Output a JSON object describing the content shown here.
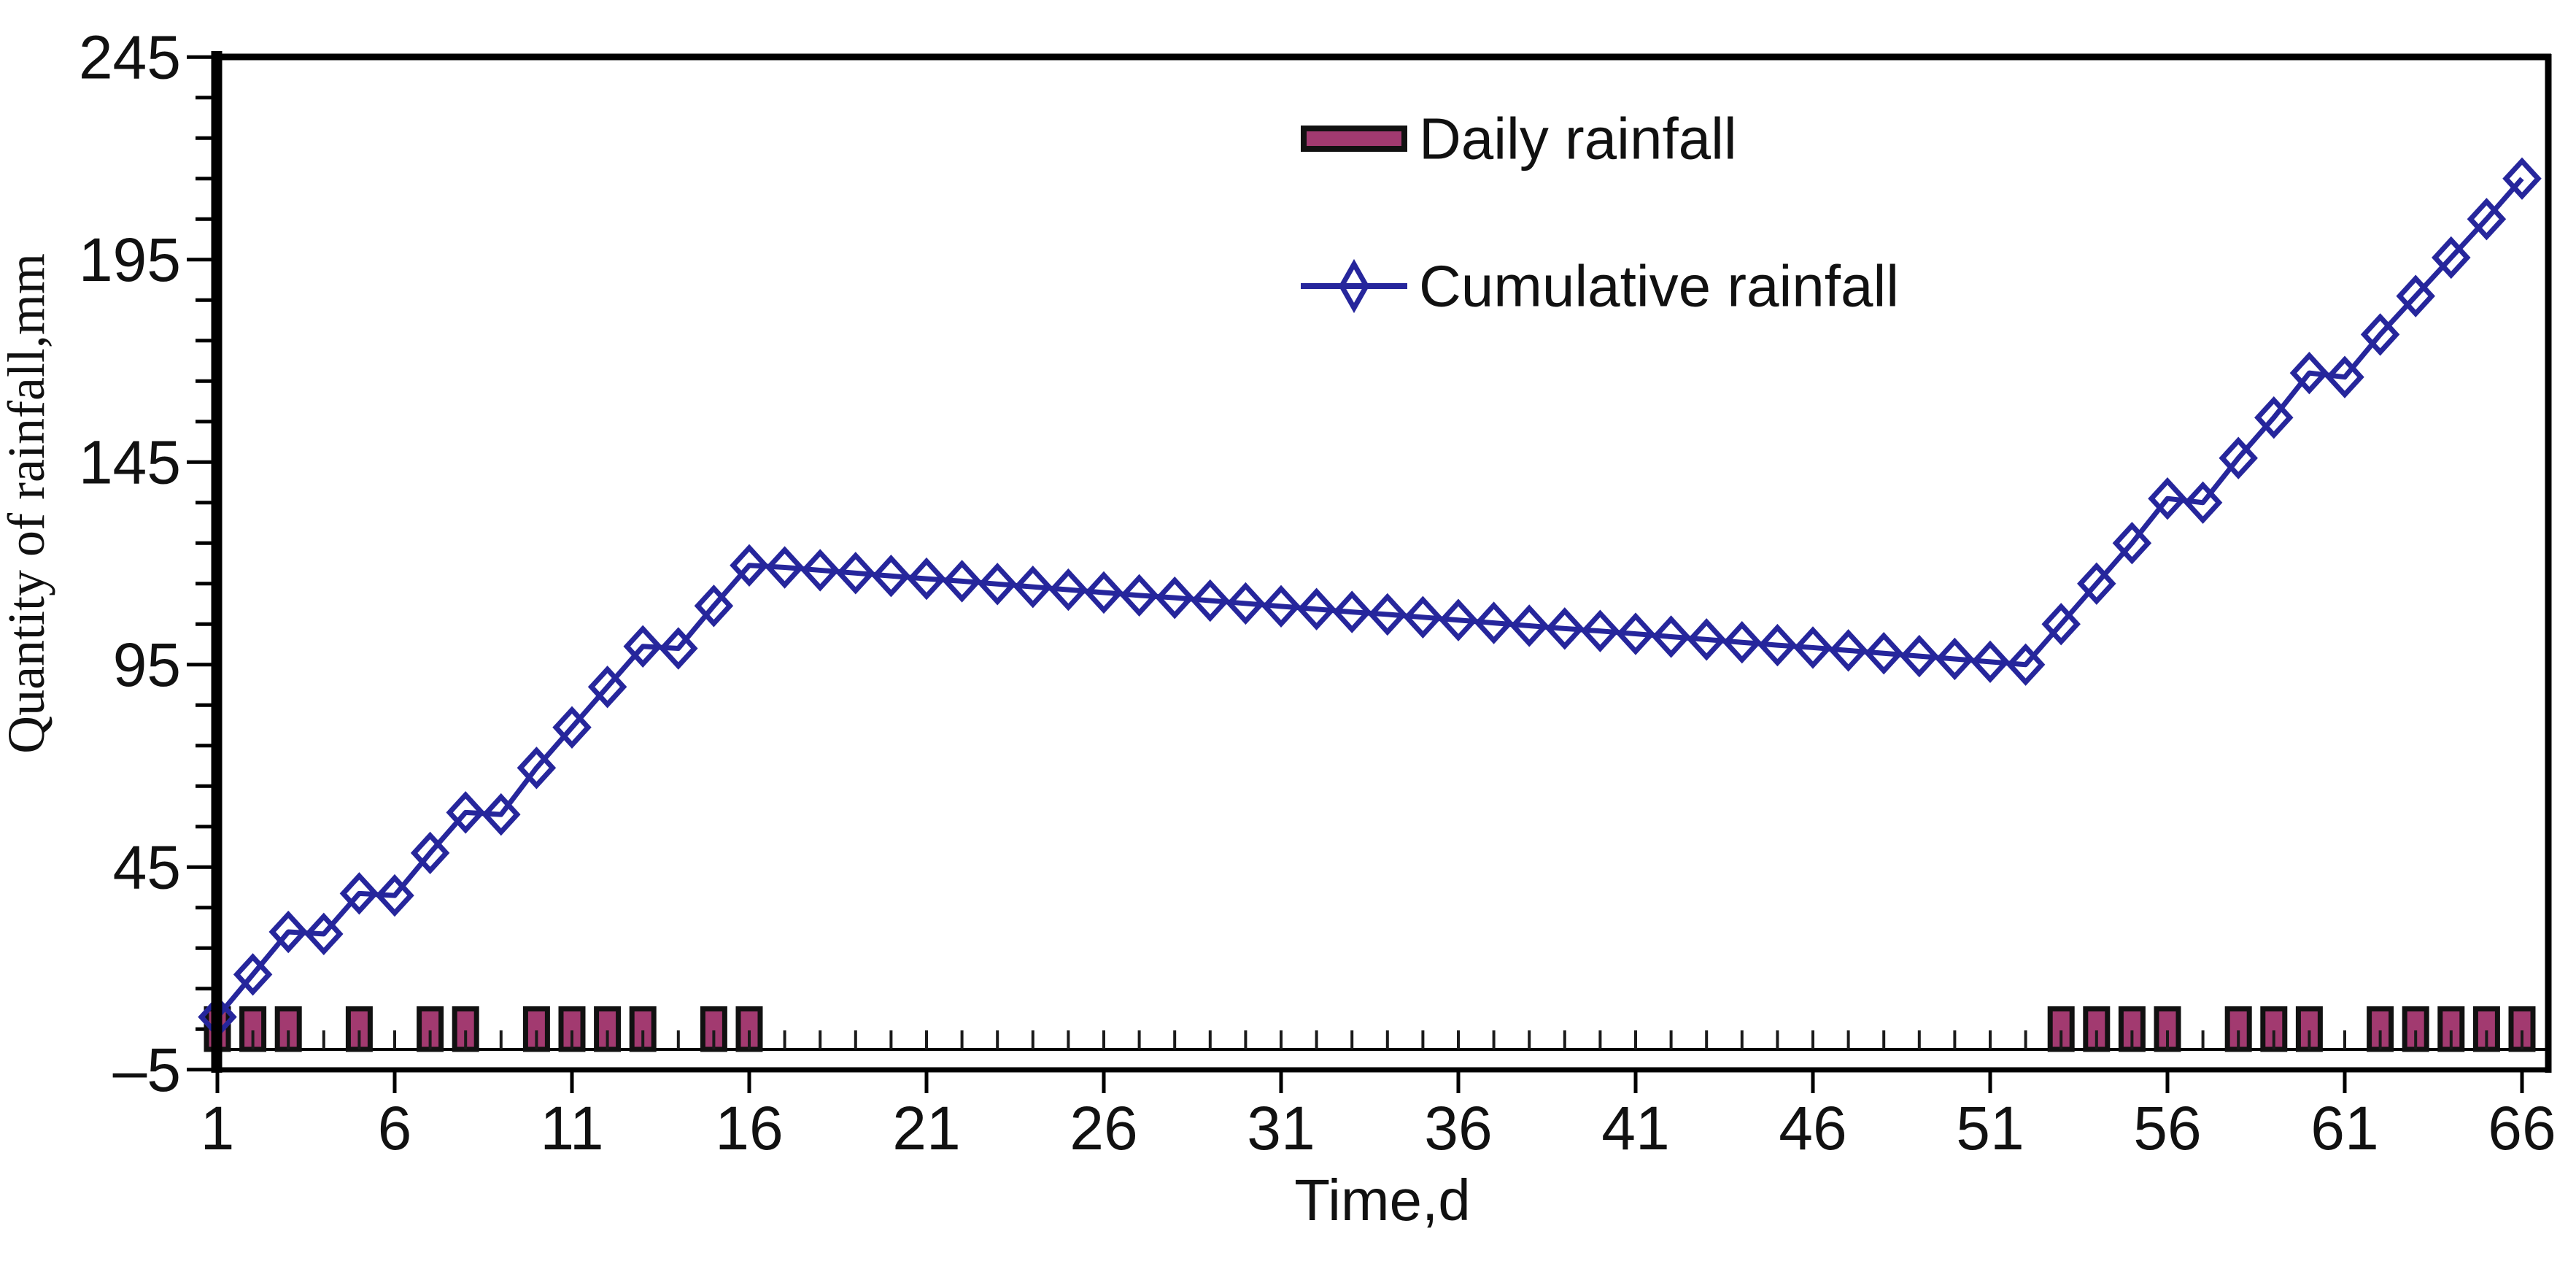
{
  "chart_data": {
    "type": "combo-bar-line",
    "title": "",
    "xlabel": "Time,d",
    "ylabel": "Quantity of rainfall,mm",
    "x": [
      1,
      2,
      3,
      4,
      5,
      6,
      7,
      8,
      9,
      10,
      11,
      12,
      13,
      14,
      15,
      16,
      17,
      18,
      19,
      20,
      21,
      22,
      23,
      24,
      25,
      26,
      27,
      28,
      29,
      30,
      31,
      32,
      33,
      34,
      35,
      36,
      37,
      38,
      39,
      40,
      41,
      42,
      43,
      44,
      45,
      46,
      47,
      48,
      49,
      50,
      51,
      52,
      53,
      54,
      55,
      56,
      57,
      58,
      59,
      60,
      61,
      62,
      63,
      64,
      65,
      66
    ],
    "series": [
      {
        "name": "Daily rainfall",
        "type": "bar",
        "color": "#A23A70",
        "border_color": "#111111",
        "values": [
          10,
          10,
          10,
          0,
          10,
          0,
          10,
          10,
          0,
          10,
          10,
          10,
          10,
          0,
          10,
          10,
          0,
          0,
          0,
          0,
          0,
          0,
          0,
          0,
          0,
          0,
          0,
          0,
          0,
          0,
          0,
          0,
          0,
          0,
          0,
          0,
          0,
          0,
          0,
          0,
          0,
          0,
          0,
          0,
          0,
          0,
          0,
          0,
          0,
          0,
          0,
          0,
          10,
          10,
          10,
          10,
          0,
          10,
          10,
          10,
          0,
          10,
          10,
          10,
          10,
          10
        ]
      },
      {
        "name": "Cumulative rainfall",
        "type": "line",
        "marker": "open-diamond",
        "color": "#26269C",
        "values": [
          8,
          18.5,
          29,
          28.5,
          38.5,
          38,
          48.5,
          58.5,
          58,
          69.5,
          79.5,
          89.5,
          99.5,
          99,
          109.5,
          119.5,
          119,
          118.3,
          117.6,
          116.9,
          116.2,
          115.6,
          114.9,
          114.2,
          113.5,
          112.8,
          112.1,
          111.5,
          110.8,
          110.1,
          109.4,
          108.7,
          108,
          107.4,
          106.7,
          106,
          105.3,
          104.6,
          103.9,
          103.3,
          102.6,
          101.9,
          101.2,
          100.5,
          99.8,
          99.2,
          98.5,
          97.8,
          97.1,
          96.4,
          95.7,
          95,
          105,
          115,
          125,
          136,
          135,
          146,
          156,
          167,
          166,
          176.5,
          186,
          195.5,
          205,
          215
        ]
      }
    ],
    "x_axis": {
      "label": "Time,d",
      "tick_values": [
        1,
        6,
        11,
        16,
        21,
        26,
        31,
        36,
        41,
        46,
        51,
        56,
        61,
        66
      ],
      "minor_tick_every_day": true,
      "range": [
        1,
        66
      ]
    },
    "y_axis": {
      "label": "Quantity of rainfall,mm",
      "tick_values": [
        245,
        195,
        145,
        95,
        45,
        -5
      ],
      "tick_labels": [
        "245",
        "195",
        "145",
        "95",
        "45",
        "–5"
      ],
      "minor_step": 10,
      "major_step": 50,
      "range": [
        -5,
        245
      ]
    },
    "legend": {
      "position": "top-center",
      "items": [
        "Daily rainfall",
        "Cumulative rainfall"
      ]
    },
    "grid": "off",
    "background": "#ffffff"
  },
  "colors": {
    "bar_fill": "#A23A70",
    "bar_border": "#111111",
    "line": "#26269C",
    "axis": "#000000",
    "text": "#111111",
    "background": "#ffffff"
  }
}
